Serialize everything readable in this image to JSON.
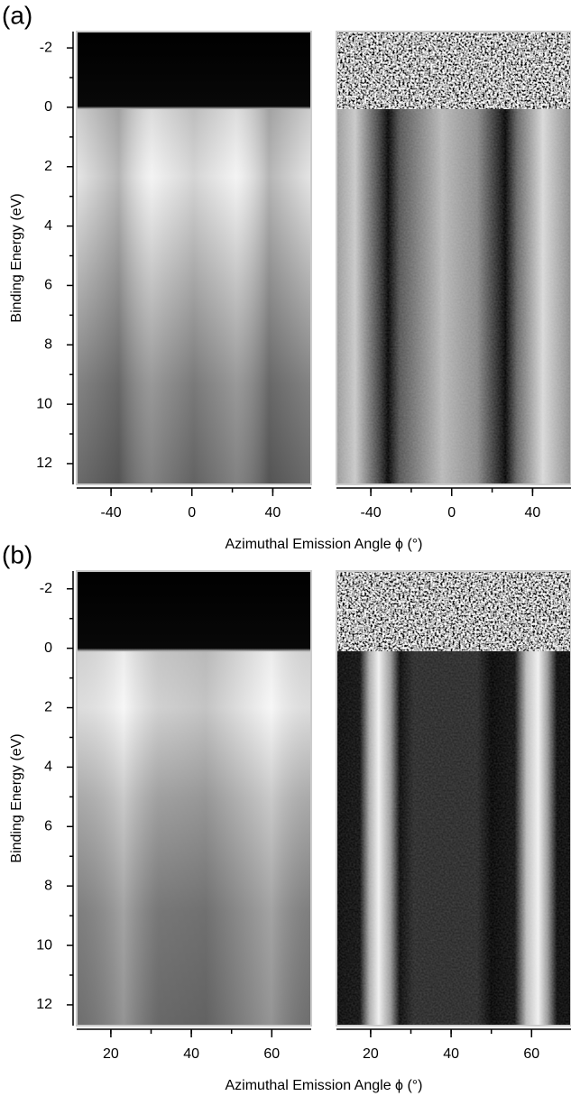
{
  "chart_data": [
    {
      "type": "image",
      "label": "(a)",
      "ylabel": "Binding Energy (eV)",
      "xlabel": "Azimuthal Emission Angle ϕ (°)",
      "xlim": [
        -57,
        59
      ],
      "ylim": [
        -2.55,
        12.7
      ],
      "xticks": [
        -40,
        0,
        40
      ],
      "yticks": [
        -2,
        0,
        2,
        4,
        6,
        8,
        10,
        12
      ],
      "inverted_y": true
    },
    {
      "type": "image",
      "label": "(b)",
      "ylabel": "Binding Energy (eV)",
      "xlabel": "Azimuthal Emission Angle ϕ (°)",
      "xlim": [
        11.5,
        69.8
      ],
      "ylim": [
        -2.6,
        12.7
      ],
      "xticks": [
        20,
        40,
        60
      ],
      "yticks": [
        -2,
        0,
        2,
        4,
        6,
        8,
        10,
        12
      ],
      "inverted_y": true
    }
  ]
}
